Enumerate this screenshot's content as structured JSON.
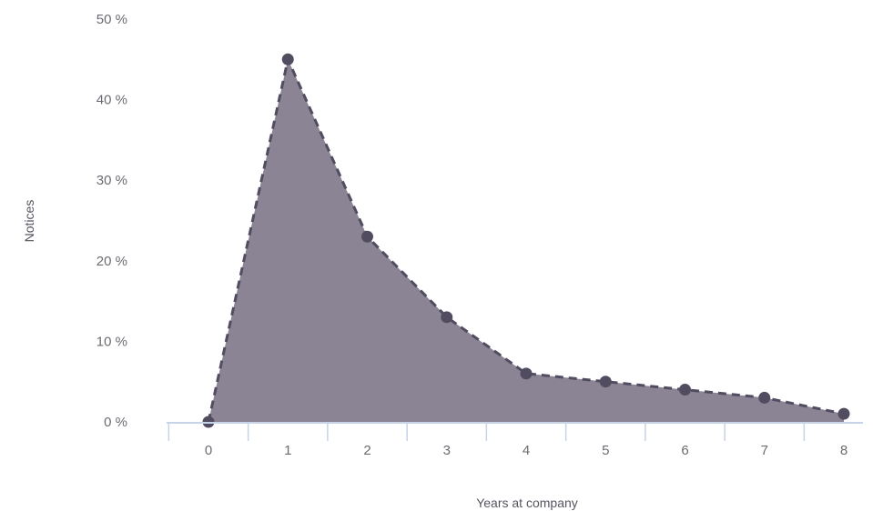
{
  "chart_data": {
    "type": "area",
    "xlabel": "Years at company",
    "ylabel": "Notices",
    "x": [
      0,
      1,
      2,
      3,
      4,
      5,
      6,
      7,
      8
    ],
    "x_tick_labels": [
      "0",
      "1",
      "2",
      "3",
      "4",
      "5",
      "6",
      "7",
      "8"
    ],
    "series": [
      {
        "values": [
          0,
          45,
          23,
          13,
          6,
          5,
          4,
          3,
          1
        ]
      }
    ],
    "ylim": [
      0,
      50
    ],
    "yticks": [
      0,
      10,
      20,
      30,
      40,
      50
    ],
    "y_tick_labels": [
      "0 %",
      "10 %",
      "20 %",
      "30 %",
      "40 %",
      "50 %"
    ],
    "grid": false,
    "line_style": "dashed",
    "markers": true,
    "colors": {
      "fill": "#8a8494",
      "line": "#524c60",
      "axis": "#c7d3e6"
    }
  }
}
